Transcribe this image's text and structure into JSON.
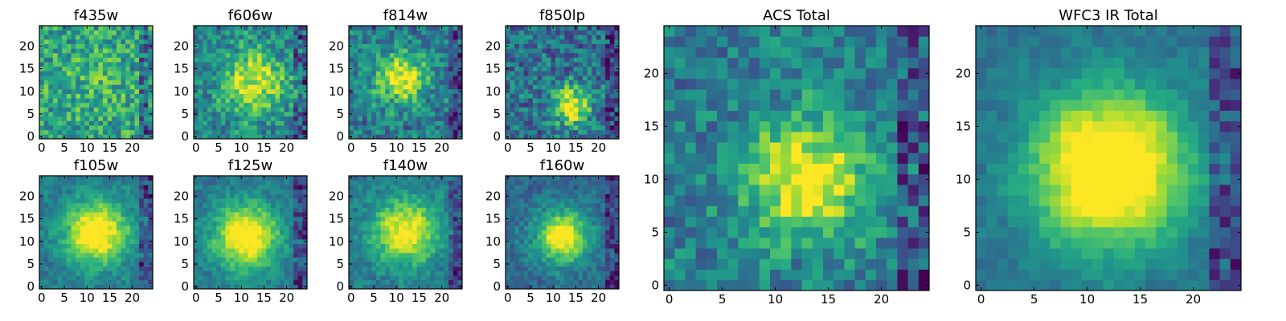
{
  "chart_data": {
    "type": "heatmap",
    "colormap": "viridis",
    "grid": false,
    "panels": [
      {
        "id": "f435w",
        "title": "f435w",
        "xlim": [
          0,
          24
        ],
        "ylim": [
          0,
          24
        ],
        "xticks": [
          0,
          5,
          10,
          15,
          20
        ],
        "yticks": [
          0,
          5,
          10,
          15,
          20
        ],
        "peak": {
          "x": 12,
          "y": 12
        },
        "spread": 7,
        "amplitude": 0.08,
        "noise": 0.45,
        "base": 0.55
      },
      {
        "id": "f606w",
        "title": "f606w",
        "xlim": [
          0,
          24
        ],
        "ylim": [
          0,
          24
        ],
        "xticks": [
          0,
          5,
          10,
          15,
          20
        ],
        "yticks": [
          0,
          5,
          10,
          15,
          20
        ],
        "peak": {
          "x": 13,
          "y": 12
        },
        "spread": 5,
        "amplitude": 0.3,
        "noise": 0.4,
        "base": 0.45
      },
      {
        "id": "f814w",
        "title": "f814w",
        "xlim": [
          0,
          24
        ],
        "ylim": [
          0,
          24
        ],
        "xticks": [
          0,
          5,
          10,
          15,
          20
        ],
        "yticks": [
          0,
          5,
          10,
          15,
          20
        ],
        "peak": {
          "x": 11,
          "y": 13
        },
        "spread": 4,
        "amplitude": 0.35,
        "noise": 0.4,
        "base": 0.42
      },
      {
        "id": "f850lp",
        "title": "f850lp",
        "xlim": [
          0,
          24
        ],
        "ylim": [
          0,
          24
        ],
        "xticks": [
          0,
          5,
          10,
          15,
          20
        ],
        "yticks": [
          0,
          5,
          10,
          15,
          20
        ],
        "peak": {
          "x": 14,
          "y": 7
        },
        "spread": 3,
        "amplitude": 0.4,
        "noise": 0.45,
        "base": 0.38
      },
      {
        "id": "f105w",
        "title": "f105w",
        "xlim": [
          0,
          24
        ],
        "ylim": [
          0,
          24
        ],
        "xticks": [
          0,
          5,
          10,
          15,
          20
        ],
        "yticks": [
          0,
          5,
          10,
          15,
          20
        ],
        "peak": {
          "x": 12,
          "y": 12
        },
        "spread": 5,
        "amplitude": 0.45,
        "noise": 0.2,
        "base": 0.4
      },
      {
        "id": "f125w",
        "title": "f125w",
        "xlim": [
          0,
          24
        ],
        "ylim": [
          0,
          24
        ],
        "xticks": [
          0,
          5,
          10,
          15,
          20
        ],
        "yticks": [
          0,
          5,
          10,
          15,
          20
        ],
        "peak": {
          "x": 11,
          "y": 11
        },
        "spread": 5,
        "amplitude": 0.45,
        "noise": 0.2,
        "base": 0.4
      },
      {
        "id": "f140w",
        "title": "f140w",
        "xlim": [
          0,
          24
        ],
        "ylim": [
          0,
          24
        ],
        "xticks": [
          0,
          5,
          10,
          15,
          20
        ],
        "yticks": [
          0,
          5,
          10,
          15,
          20
        ],
        "peak": {
          "x": 12,
          "y": 12
        },
        "spread": 5,
        "amplitude": 0.4,
        "noise": 0.22,
        "base": 0.4
      },
      {
        "id": "f160w",
        "title": "f160w",
        "xlim": [
          0,
          24
        ],
        "ylim": [
          0,
          24
        ],
        "xticks": [
          0,
          5,
          10,
          15,
          20
        ],
        "yticks": [
          0,
          5,
          10,
          15,
          20
        ],
        "peak": {
          "x": 12,
          "y": 11
        },
        "spread": 4,
        "amplitude": 0.45,
        "noise": 0.22,
        "base": 0.35
      },
      {
        "id": "acs_total",
        "title": "ACS Total",
        "xlim": [
          0,
          24
        ],
        "ylim": [
          0,
          24
        ],
        "xticks": [
          0,
          5,
          10,
          15,
          20
        ],
        "yticks": [
          0,
          5,
          10,
          15,
          20
        ],
        "peak": {
          "x": 13,
          "y": 10
        },
        "spread": 4,
        "amplitude": 0.4,
        "noise": 0.35,
        "base": 0.42
      },
      {
        "id": "wfc3_ir_total",
        "title": "WFC3 IR Total",
        "xlim": [
          0,
          24
        ],
        "ylim": [
          0,
          24
        ],
        "xticks": [
          0,
          5,
          10,
          15,
          20
        ],
        "yticks": [
          0,
          5,
          10,
          15,
          20
        ],
        "peak": {
          "x": 12,
          "y": 11
        },
        "spread": 5,
        "amplitude": 0.55,
        "noise": 0.12,
        "base": 0.38
      }
    ]
  }
}
